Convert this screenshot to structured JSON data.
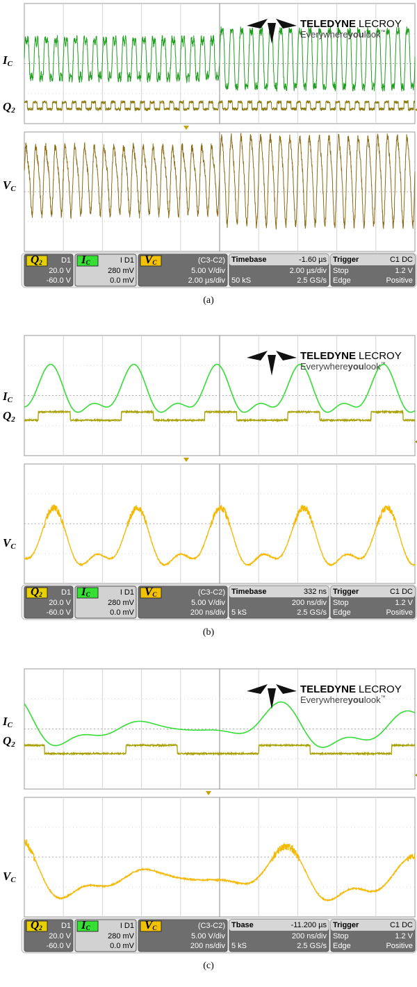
{
  "panels": [
    {
      "caption": "(a)",
      "trace_labels": {
        "ic": {
          "main": "I",
          "sub": "C"
        },
        "q2": {
          "main": "Q",
          "sub": "2"
        },
        "vc": {
          "main": "V",
          "sub": "C"
        }
      },
      "logo": {
        "brand": "TELEDYNE",
        "brand2": "LECROY",
        "tag_a": "Everywhere",
        "tag_b": "you",
        "tag_c": "look",
        "tm": "™"
      },
      "info": {
        "q2": {
          "tag": {
            "main": "Q",
            "sub": "2"
          },
          "source": "D1",
          "lines": [
            "20.0 V",
            "-60.0 V"
          ]
        },
        "ic": {
          "tag": {
            "main": "I",
            "sub": "C"
          },
          "source": "I D1",
          "lines": [
            "280 mV",
            "0.0 mV"
          ]
        },
        "vc": {
          "tag": {
            "main": "V",
            "sub": "C"
          },
          "source": "(C3-C2)",
          "lines": [
            "5.00 V/div",
            "2.00 µs/div"
          ]
        },
        "timebase": {
          "title": "Timebase",
          "value": "-1.60 µs",
          "scale": "2.00 µs/div",
          "points": "50 kS",
          "rate": "2.5 GS/s"
        },
        "trigger": {
          "title": "Trigger",
          "source": "C1 DC",
          "mode": "Stop",
          "level": "1.2 V",
          "type": "Edge",
          "slope": "Positive"
        }
      }
    },
    {
      "caption": "(b)",
      "trace_labels": {
        "ic": {
          "main": "I",
          "sub": "C"
        },
        "q2": {
          "main": "Q",
          "sub": "2"
        },
        "vc": {
          "main": "V",
          "sub": "C"
        }
      },
      "logo": {
        "brand": "TELEDYNE",
        "brand2": "LECROY",
        "tag_a": "Everywhere",
        "tag_b": "you",
        "tag_c": "look",
        "tm": "™"
      },
      "info": {
        "q2": {
          "tag": {
            "main": "Q",
            "sub": "2"
          },
          "source": "D1",
          "lines": [
            "20.0 V",
            "-60.0 V"
          ]
        },
        "ic": {
          "tag": {
            "main": "I",
            "sub": "C"
          },
          "source": "I D1",
          "lines": [
            "280 mV",
            "0.0 mV"
          ]
        },
        "vc": {
          "tag": {
            "main": "V",
            "sub": "C"
          },
          "source": "(C3-C2)",
          "lines": [
            "5.00 V/div",
            "200 ns/div"
          ]
        },
        "timebase": {
          "title": "Timebase",
          "value": "332 ns",
          "scale": "200 ns/div",
          "points": "5 kS",
          "rate": "2.5 GS/s"
        },
        "trigger": {
          "title": "Trigger",
          "source": "C1 DC",
          "mode": "Stop",
          "level": "1.2 V",
          "type": "Edge",
          "slope": "Positive"
        }
      }
    },
    {
      "caption": "(c)",
      "trace_labels": {
        "ic": {
          "main": "I",
          "sub": "C"
        },
        "q2": {
          "main": "Q",
          "sub": "2"
        },
        "vc": {
          "main": "V",
          "sub": "C"
        }
      },
      "logo": {
        "brand": "TELEDYNE",
        "brand2": "LECROY",
        "tag_a": "Everywhere",
        "tag_b": "you",
        "tag_c": "look",
        "tm": "™"
      },
      "info": {
        "q2": {
          "tag": {
            "main": "Q",
            "sub": "2"
          },
          "source": "D1",
          "lines": [
            "20.0 V",
            "-60.0 V"
          ]
        },
        "ic": {
          "tag": {
            "main": "I",
            "sub": "C"
          },
          "source": "I D1",
          "lines": [
            "280 mV",
            "0.0 mV"
          ]
        },
        "vc": {
          "tag": {
            "main": "V",
            "sub": "C"
          },
          "source": "(C3-C2)",
          "lines": [
            "5.00 V/div",
            "200 ns/div"
          ]
        },
        "timebase": {
          "title": "Tbase",
          "value": "-11.200 µs",
          "scale": "200 ns/div",
          "points": "5 kS",
          "rate": "2.5 GS/s"
        },
        "trigger": {
          "title": "Trigger",
          "source": "C1 DC",
          "mode": "Stop",
          "level": "1.2 V",
          "type": "Edge",
          "slope": "Positive"
        }
      }
    }
  ]
}
